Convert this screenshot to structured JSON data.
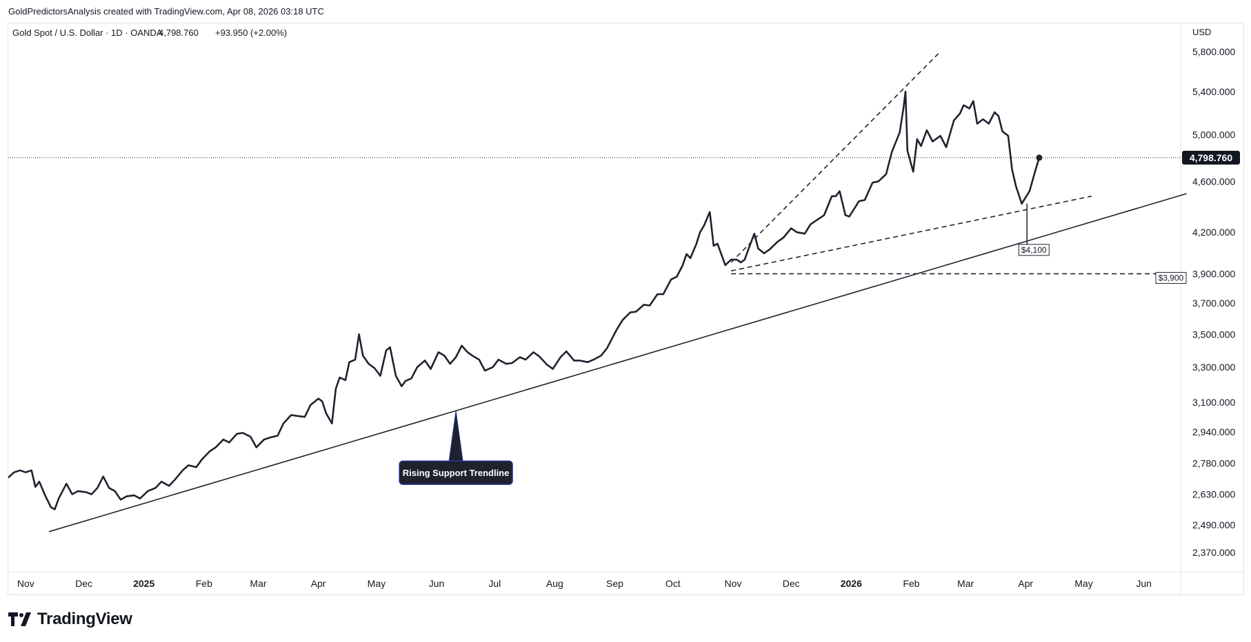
{
  "byline": "GoldPredictorsAnalysis created with TradingView.com, Apr 08, 2026 03:18 UTC",
  "logo": {
    "text": "TradingView",
    "icon": "tradingview-logo-icon"
  },
  "colors": {
    "line": "#1e222d",
    "grid": "#e0e3eb",
    "text": "#131722",
    "price_badge_bg": "#131722",
    "price_badge_text": "#ffffff",
    "callout_bg": "#1e222d",
    "callout_border": "#2a3aa0"
  },
  "chart_data": {
    "type": "line",
    "title": "Gold Spot / U.S. Dollar · 1D · OANDA",
    "legend": {
      "symbol": "Gold Spot / U.S. Dollar · 1D · OANDA",
      "last": "4,798.760",
      "change": "+93.950 (+2.00%)"
    },
    "currency": "USD",
    "scale": "log",
    "ylim": [
      2290,
      6100
    ],
    "xlim": [
      "2024-10-23",
      "2026-06-20"
    ],
    "y_ticks": [
      {
        "value": 5800,
        "label": "5,800.000"
      },
      {
        "value": 5400,
        "label": "5,400.000"
      },
      {
        "value": 5000,
        "label": "5,000.000"
      },
      {
        "value": 4600,
        "label": "4,600.000"
      },
      {
        "value": 4200,
        "label": "4,200.000"
      },
      {
        "value": 3900,
        "label": "3,900.000"
      },
      {
        "value": 3700,
        "label": "3,700.000"
      },
      {
        "value": 3500,
        "label": "3,500.000"
      },
      {
        "value": 3300,
        "label": "3,300.000"
      },
      {
        "value": 3100,
        "label": "3,100.000"
      },
      {
        "value": 2940,
        "label": "2,940.000"
      },
      {
        "value": 2780,
        "label": "2,780.000"
      },
      {
        "value": 2630,
        "label": "2,630.000"
      },
      {
        "value": 2490,
        "label": "2,490.000"
      },
      {
        "value": 2370,
        "label": "2,370.000"
      }
    ],
    "x_ticks": [
      {
        "date": "2024-11-01",
        "label": "Nov",
        "bold": false
      },
      {
        "date": "2024-12-01",
        "label": "Dec",
        "bold": false
      },
      {
        "date": "2025-01-01",
        "label": "2025",
        "bold": true
      },
      {
        "date": "2025-02-01",
        "label": "Feb",
        "bold": false
      },
      {
        "date": "2025-03-01",
        "label": "Mar",
        "bold": false
      },
      {
        "date": "2025-04-01",
        "label": "Apr",
        "bold": false
      },
      {
        "date": "2025-05-01",
        "label": "May",
        "bold": false
      },
      {
        "date": "2025-06-01",
        "label": "Jun",
        "bold": false
      },
      {
        "date": "2025-07-01",
        "label": "Jul",
        "bold": false
      },
      {
        "date": "2025-08-01",
        "label": "Aug",
        "bold": false
      },
      {
        "date": "2025-09-01",
        "label": "Sep",
        "bold": false
      },
      {
        "date": "2025-10-01",
        "label": "Oct",
        "bold": false
      },
      {
        "date": "2025-11-01",
        "label": "Nov",
        "bold": false
      },
      {
        "date": "2025-12-01",
        "label": "Dec",
        "bold": false
      },
      {
        "date": "2026-01-01",
        "label": "2026",
        "bold": true
      },
      {
        "date": "2026-02-01",
        "label": "Feb",
        "bold": false
      },
      {
        "date": "2026-03-01",
        "label": "Mar",
        "bold": false
      },
      {
        "date": "2026-04-01",
        "label": "Apr",
        "bold": false
      },
      {
        "date": "2026-05-01",
        "label": "May",
        "bold": false
      },
      {
        "date": "2026-06-01",
        "label": "Jun",
        "bold": false
      }
    ],
    "last_price": {
      "value": 4798.76,
      "label": "4,798.760"
    },
    "series": [
      {
        "points": [
          [
            "2024-10-23",
            2710
          ],
          [
            "2024-10-26",
            2735
          ],
          [
            "2024-10-29",
            2745
          ],
          [
            "2024-11-01",
            2735
          ],
          [
            "2024-11-04",
            2745
          ],
          [
            "2024-11-06",
            2665
          ],
          [
            "2024-11-08",
            2690
          ],
          [
            "2024-11-11",
            2625
          ],
          [
            "2024-11-14",
            2570
          ],
          [
            "2024-11-16",
            2560
          ],
          [
            "2024-11-18",
            2610
          ],
          [
            "2024-11-22",
            2680
          ],
          [
            "2024-11-25",
            2630
          ],
          [
            "2024-11-28",
            2645
          ],
          [
            "2024-12-02",
            2640
          ],
          [
            "2024-12-05",
            2630
          ],
          [
            "2024-12-08",
            2660
          ],
          [
            "2024-12-11",
            2715
          ],
          [
            "2024-12-14",
            2660
          ],
          [
            "2024-12-17",
            2645
          ],
          [
            "2024-12-20",
            2605
          ],
          [
            "2024-12-23",
            2620
          ],
          [
            "2024-12-27",
            2625
          ],
          [
            "2024-12-30",
            2610
          ],
          [
            "2025-01-03",
            2645
          ],
          [
            "2025-01-07",
            2660
          ],
          [
            "2025-01-10",
            2690
          ],
          [
            "2025-01-14",
            2670
          ],
          [
            "2025-01-17",
            2700
          ],
          [
            "2025-01-21",
            2745
          ],
          [
            "2025-01-24",
            2770
          ],
          [
            "2025-01-28",
            2760
          ],
          [
            "2025-01-31",
            2800
          ],
          [
            "2025-02-04",
            2840
          ],
          [
            "2025-02-07",
            2860
          ],
          [
            "2025-02-11",
            2900
          ],
          [
            "2025-02-14",
            2885
          ],
          [
            "2025-02-18",
            2930
          ],
          [
            "2025-02-21",
            2935
          ],
          [
            "2025-02-25",
            2915
          ],
          [
            "2025-02-28",
            2860
          ],
          [
            "2025-03-04",
            2900
          ],
          [
            "2025-03-07",
            2910
          ],
          [
            "2025-03-11",
            2920
          ],
          [
            "2025-03-14",
            2985
          ],
          [
            "2025-03-18",
            3030
          ],
          [
            "2025-03-21",
            3025
          ],
          [
            "2025-03-25",
            3020
          ],
          [
            "2025-03-28",
            3085
          ],
          [
            "2025-04-01",
            3120
          ],
          [
            "2025-04-03",
            3105
          ],
          [
            "2025-04-05",
            3040
          ],
          [
            "2025-04-08",
            2985
          ],
          [
            "2025-04-10",
            3175
          ],
          [
            "2025-04-12",
            3240
          ],
          [
            "2025-04-15",
            3225
          ],
          [
            "2025-04-17",
            3330
          ],
          [
            "2025-04-20",
            3345
          ],
          [
            "2025-04-22",
            3500
          ],
          [
            "2025-04-24",
            3370
          ],
          [
            "2025-04-27",
            3320
          ],
          [
            "2025-04-30",
            3295
          ],
          [
            "2025-05-03",
            3250
          ],
          [
            "2025-05-06",
            3400
          ],
          [
            "2025-05-08",
            3420
          ],
          [
            "2025-05-11",
            3250
          ],
          [
            "2025-05-14",
            3190
          ],
          [
            "2025-05-16",
            3220
          ],
          [
            "2025-05-19",
            3235
          ],
          [
            "2025-05-22",
            3300
          ],
          [
            "2025-05-26",
            3340
          ],
          [
            "2025-05-29",
            3290
          ],
          [
            "2025-06-02",
            3390
          ],
          [
            "2025-06-05",
            3370
          ],
          [
            "2025-06-08",
            3320
          ],
          [
            "2025-06-11",
            3360
          ],
          [
            "2025-06-14",
            3430
          ],
          [
            "2025-06-17",
            3390
          ],
          [
            "2025-06-20",
            3365
          ],
          [
            "2025-06-23",
            3345
          ],
          [
            "2025-06-26",
            3280
          ],
          [
            "2025-06-30",
            3300
          ],
          [
            "2025-07-03",
            3345
          ],
          [
            "2025-07-07",
            3320
          ],
          [
            "2025-07-10",
            3325
          ],
          [
            "2025-07-14",
            3360
          ],
          [
            "2025-07-17",
            3345
          ],
          [
            "2025-07-21",
            3390
          ],
          [
            "2025-07-24",
            3365
          ],
          [
            "2025-07-28",
            3315
          ],
          [
            "2025-07-31",
            3290
          ],
          [
            "2025-08-04",
            3360
          ],
          [
            "2025-08-07",
            3395
          ],
          [
            "2025-08-11",
            3340
          ],
          [
            "2025-08-14",
            3340
          ],
          [
            "2025-08-18",
            3330
          ],
          [
            "2025-08-21",
            3345
          ],
          [
            "2025-08-25",
            3370
          ],
          [
            "2025-08-28",
            3415
          ],
          [
            "2025-09-02",
            3530
          ],
          [
            "2025-09-05",
            3590
          ],
          [
            "2025-09-09",
            3640
          ],
          [
            "2025-09-12",
            3645
          ],
          [
            "2025-09-16",
            3690
          ],
          [
            "2025-09-19",
            3685
          ],
          [
            "2025-09-23",
            3760
          ],
          [
            "2025-09-26",
            3760
          ],
          [
            "2025-09-30",
            3860
          ],
          [
            "2025-10-03",
            3880
          ],
          [
            "2025-10-06",
            3960
          ],
          [
            "2025-10-08",
            4040
          ],
          [
            "2025-10-10",
            4010
          ],
          [
            "2025-10-13",
            4110
          ],
          [
            "2025-10-15",
            4200
          ],
          [
            "2025-10-17",
            4250
          ],
          [
            "2025-10-20",
            4355
          ],
          [
            "2025-10-22",
            4100
          ],
          [
            "2025-10-24",
            4115
          ],
          [
            "2025-10-28",
            3960
          ],
          [
            "2025-10-31",
            4000
          ],
          [
            "2025-11-03",
            4000
          ],
          [
            "2025-11-05",
            3980
          ],
          [
            "2025-11-07",
            4000
          ],
          [
            "2025-11-10",
            4115
          ],
          [
            "2025-11-12",
            4190
          ],
          [
            "2025-11-14",
            4080
          ],
          [
            "2025-11-17",
            4045
          ],
          [
            "2025-11-20",
            4075
          ],
          [
            "2025-11-24",
            4130
          ],
          [
            "2025-11-27",
            4160
          ],
          [
            "2025-12-01",
            4230
          ],
          [
            "2025-12-04",
            4200
          ],
          [
            "2025-12-08",
            4190
          ],
          [
            "2025-12-11",
            4260
          ],
          [
            "2025-12-15",
            4300
          ],
          [
            "2025-12-18",
            4330
          ],
          [
            "2025-12-22",
            4480
          ],
          [
            "2025-12-24",
            4480
          ],
          [
            "2025-12-26",
            4520
          ],
          [
            "2025-12-29",
            4330
          ],
          [
            "2025-12-31",
            4320
          ],
          [
            "2026-01-05",
            4440
          ],
          [
            "2026-01-08",
            4450
          ],
          [
            "2026-01-12",
            4590
          ],
          [
            "2026-01-15",
            4600
          ],
          [
            "2026-01-19",
            4660
          ],
          [
            "2026-01-22",
            4850
          ],
          [
            "2026-01-26",
            5020
          ],
          [
            "2026-01-28",
            5250
          ],
          [
            "2026-01-29",
            5400
          ],
          [
            "2026-01-30",
            4860
          ],
          [
            "2026-02-02",
            4680
          ],
          [
            "2026-02-04",
            4960
          ],
          [
            "2026-02-06",
            4900
          ],
          [
            "2026-02-09",
            5040
          ],
          [
            "2026-02-12",
            4940
          ],
          [
            "2026-02-16",
            4990
          ],
          [
            "2026-02-19",
            4890
          ],
          [
            "2026-02-23",
            5130
          ],
          [
            "2026-02-26",
            5190
          ],
          [
            "2026-02-28",
            5270
          ],
          [
            "2026-03-03",
            5240
          ],
          [
            "2026-03-05",
            5310
          ],
          [
            "2026-03-07",
            5100
          ],
          [
            "2026-03-10",
            5140
          ],
          [
            "2026-03-13",
            5100
          ],
          [
            "2026-03-16",
            5205
          ],
          [
            "2026-03-18",
            5170
          ],
          [
            "2026-03-20",
            5030
          ],
          [
            "2026-03-23",
            4990
          ],
          [
            "2026-03-25",
            4700
          ],
          [
            "2026-03-27",
            4560
          ],
          [
            "2026-03-30",
            4420
          ],
          [
            "2026-04-01",
            4470
          ],
          [
            "2026-04-03",
            4520
          ],
          [
            "2026-04-06",
            4690
          ],
          [
            "2026-04-08",
            4798.76
          ]
        ]
      }
    ],
    "trendlines": [
      {
        "name": "rising-support",
        "style": "solid",
        "from": [
          "2024-11-13",
          2460
        ],
        "to": [
          "2026-06-23",
          4500
        ]
      },
      {
        "name": "upper-channel",
        "style": "dashed",
        "from": [
          "2025-10-31",
          3980
        ],
        "to": [
          "2026-02-15",
          5780
        ]
      },
      {
        "name": "lower-channel",
        "style": "dashed",
        "from": [
          "2025-10-31",
          3920
        ],
        "to": [
          "2026-05-05",
          4480
        ]
      },
      {
        "name": "level-3900",
        "style": "dashed",
        "from": [
          "2025-10-31",
          3900
        ],
        "to": [
          "2026-06-15",
          3900
        ]
      }
    ],
    "annotations": [
      {
        "text": "$4,100",
        "date": "2026-04-01",
        "value": 4100
      },
      {
        "text": "$3,900",
        "date": "2026-06-15",
        "value": 3900
      }
    ],
    "callout": {
      "text": "Rising Support Trendline",
      "anchor_date": "2025-06-11",
      "box_date": "2025-06-11",
      "box_value": 2740
    }
  }
}
